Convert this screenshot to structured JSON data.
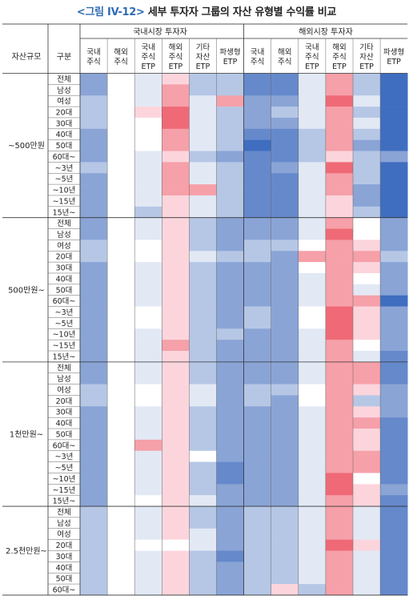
{
  "title": {
    "tag": "<그림 IV-12>",
    "text": "세부 투자자 그룹의 자산 유형별 수익률 비교"
  },
  "headers": {
    "asset_size": "자산규모",
    "group": "구분",
    "domestic_investor": "국내시장 투자자",
    "overseas_investor": "해외시장 투자자"
  },
  "chart_data": {
    "type": "heatmap",
    "value_scale": "color: blue = lower return, red = higher return (values estimated 0-10 from cell color)",
    "columns": [
      {
        "section": "국내시장 투자자",
        "lines": [
          "국내",
          "주식"
        ]
      },
      {
        "section": "국내시장 투자자",
        "lines": [
          "해외",
          "주식"
        ]
      },
      {
        "section": "국내시장 투자자",
        "lines": [
          "국내",
          "주식",
          "ETP"
        ]
      },
      {
        "section": "국내시장 투자자",
        "lines": [
          "해외",
          "주식",
          "ETP"
        ]
      },
      {
        "section": "국내시장 투자자",
        "lines": [
          "기타",
          "자산",
          "ETP"
        ]
      },
      {
        "section": "국내시장 투자자",
        "lines": [
          "파생형",
          "ETP"
        ]
      },
      {
        "section": "해외시장 투자자",
        "lines": [
          "국내",
          "주식"
        ]
      },
      {
        "section": "해외시장 투자자",
        "lines": [
          "해외",
          "주식"
        ]
      },
      {
        "section": "해외시장 투자자",
        "lines": [
          "국내",
          "주식",
          "ETP"
        ]
      },
      {
        "section": "해외시장 투자자",
        "lines": [
          "해외",
          "주식",
          "ETP"
        ]
      },
      {
        "section": "해외시장 투자자",
        "lines": [
          "기타",
          "자산",
          "ETP"
        ]
      },
      {
        "section": "해외시장 투자자",
        "lines": [
          "파생형",
          "ETP"
        ]
      }
    ],
    "groups": [
      {
        "label": "~500만원",
        "rows": [
          {
            "label": "전체",
            "values": [
              2,
              5,
              4,
              6,
              3,
              3,
              1,
              1,
              4,
              7,
              3,
              0
            ]
          },
          {
            "label": "남성",
            "values": [
              2,
              5,
              4,
              7,
              3,
              3,
              1,
              1,
              4,
              7,
              3,
              0
            ]
          },
          {
            "label": "여성",
            "values": [
              3,
              5,
              4,
              7,
              4,
              7,
              2,
              2,
              4,
              8,
              4,
              0
            ]
          },
          {
            "label": "20대",
            "values": [
              3,
              5,
              6,
              8,
              4,
              3,
              2,
              3,
              4,
              7,
              3,
              0
            ]
          },
          {
            "label": "30대",
            "values": [
              3,
              5,
              5,
              8,
              4,
              3,
              2,
              2,
              4,
              7,
              4,
              0
            ]
          },
          {
            "label": "40대",
            "values": [
              2,
              5,
              5,
              7,
              4,
              3,
              1,
              1,
              3,
              7,
              3,
              0
            ]
          },
          {
            "label": "50대",
            "values": [
              2,
              5,
              5,
              7,
              4,
              3,
              0,
              1,
              3,
              7,
              2,
              0
            ]
          },
          {
            "label": "60대~",
            "values": [
              2,
              5,
              4,
              6,
              3,
              2,
              1,
              1,
              3,
              6,
              3,
              2
            ]
          },
          {
            "label": "~3년",
            "values": [
              3,
              5,
              4,
              7,
              4,
              3,
              1,
              2,
              4,
              8,
              3,
              0
            ]
          },
          {
            "label": "~5년",
            "values": [
              2,
              5,
              4,
              7,
              4,
              3,
              1,
              1,
              4,
              7,
              3,
              0
            ]
          },
          {
            "label": "~10년",
            "values": [
              2,
              5,
              4,
              7,
              7,
              3,
              1,
              1,
              4,
              7,
              2,
              0
            ]
          },
          {
            "label": "~15년",
            "values": [
              2,
              5,
              4,
              6,
              4,
              3,
              1,
              1,
              4,
              6,
              2,
              0
            ]
          },
          {
            "label": "15년~",
            "values": [
              2,
              5,
              3,
              6,
              4,
              3,
              1,
              1,
              4,
              6,
              3,
              0
            ]
          }
        ]
      },
      {
        "label": "500만원~",
        "rows": [
          {
            "label": "전체",
            "values": [
              2,
              5,
              4,
              6,
              3,
              2,
              2,
              2,
              4,
              7,
              5,
              2
            ]
          },
          {
            "label": "남성",
            "values": [
              2,
              5,
              4,
              6,
              3,
              2,
              2,
              2,
              4,
              8,
              5,
              2
            ]
          },
          {
            "label": "여성",
            "values": [
              3,
              5,
              5,
              6,
              3,
              2,
              3,
              3,
              5,
              7,
              6,
              2
            ]
          },
          {
            "label": "20대",
            "values": [
              3,
              5,
              5,
              6,
              4,
              3,
              3,
              2,
              7,
              7,
              7,
              3
            ]
          },
          {
            "label": "30대",
            "values": [
              2,
              5,
              4,
              6,
              3,
              2,
              2,
              2,
              5,
              7,
              6,
              2
            ]
          },
          {
            "label": "40대",
            "values": [
              2,
              5,
              4,
              6,
              3,
              2,
              2,
              2,
              4,
              7,
              5,
              2
            ]
          },
          {
            "label": "50대",
            "values": [
              2,
              5,
              4,
              6,
              3,
              2,
              2,
              2,
              4,
              7,
              4,
              2
            ]
          },
          {
            "label": "60대~",
            "values": [
              2,
              5,
              4,
              6,
              3,
              2,
              2,
              2,
              4,
              7,
              7,
              0
            ]
          },
          {
            "label": "~3년",
            "values": [
              2,
              5,
              5,
              6,
              3,
              2,
              3,
              2,
              5,
              8,
              6,
              2
            ]
          },
          {
            "label": "~5년",
            "values": [
              2,
              5,
              5,
              6,
              3,
              2,
              3,
              2,
              5,
              8,
              6,
              2
            ]
          },
          {
            "label": "~10년",
            "values": [
              2,
              5,
              4,
              6,
              3,
              3,
              2,
              2,
              4,
              8,
              6,
              2
            ]
          },
          {
            "label": "~15년",
            "values": [
              2,
              5,
              4,
              7,
              3,
              2,
              2,
              2,
              4,
              7,
              5,
              2
            ]
          },
          {
            "label": "15년~",
            "values": [
              2,
              5,
              4,
              6,
              3,
              2,
              2,
              2,
              4,
              7,
              4,
              1
            ]
          }
        ]
      },
      {
        "label": "1천만원~",
        "rows": [
          {
            "label": "전체",
            "values": [
              2,
              5,
              4,
              6,
              3,
              2,
              2,
              2,
              4,
              7,
              7,
              1
            ]
          },
          {
            "label": "남성",
            "values": [
              2,
              5,
              4,
              6,
              3,
              2,
              2,
              2,
              4,
              7,
              7,
              1
            ]
          },
          {
            "label": "여성",
            "values": [
              3,
              5,
              5,
              6,
              4,
              2,
              3,
              3,
              5,
              7,
              6,
              2
            ]
          },
          {
            "label": "20대",
            "values": [
              3,
              5,
              5,
              6,
              4,
              2,
              3,
              2,
              5,
              7,
              3,
              2
            ]
          },
          {
            "label": "30대",
            "values": [
              2,
              5,
              4,
              6,
              3,
              2,
              2,
              2,
              4,
              7,
              6,
              2
            ]
          },
          {
            "label": "40대",
            "values": [
              2,
              5,
              4,
              6,
              3,
              2,
              2,
              2,
              4,
              7,
              7,
              1
            ]
          },
          {
            "label": "50대",
            "values": [
              2,
              5,
              4,
              6,
              3,
              2,
              2,
              2,
              4,
              7,
              6,
              1
            ]
          },
          {
            "label": "60대~",
            "values": [
              2,
              5,
              7,
              6,
              3,
              2,
              2,
              2,
              4,
              7,
              6,
              1
            ]
          },
          {
            "label": "~3년",
            "values": [
              2,
              5,
              4,
              6,
              5,
              2,
              2,
              2,
              4,
              7,
              7,
              1
            ]
          },
          {
            "label": "~5년",
            "values": [
              2,
              5,
              4,
              6,
              3,
              1,
              2,
              2,
              4,
              7,
              7,
              1
            ]
          },
          {
            "label": "~10년",
            "values": [
              2,
              5,
              4,
              6,
              3,
              1,
              2,
              2,
              4,
              8,
              5,
              1
            ]
          },
          {
            "label": "~15년",
            "values": [
              2,
              5,
              4,
              6,
              3,
              2,
              2,
              2,
              4,
              8,
              6,
              2
            ]
          },
          {
            "label": "15년~",
            "values": [
              2,
              5,
              5,
              6,
              4,
              2,
              2,
              2,
              4,
              7,
              6,
              1
            ]
          }
        ]
      },
      {
        "label": "2.5천만원~",
        "rows": [
          {
            "label": "전체",
            "values": [
              3,
              5,
              4,
              6,
              3,
              2,
              3,
              3,
              4,
              7,
              4,
              1
            ]
          },
          {
            "label": "남성",
            "values": [
              3,
              5,
              4,
              6,
              3,
              2,
              3,
              3,
              4,
              7,
              4,
              1
            ]
          },
          {
            "label": "여성",
            "values": [
              3,
              5,
              4,
              6,
              4,
              2,
              3,
              3,
              4,
              7,
              4,
              1
            ]
          },
          {
            "label": "20대",
            "values": [
              3,
              5,
              5,
              5,
              4,
              2,
              3,
              3,
              4,
              8,
              6,
              1
            ]
          },
          {
            "label": "30대",
            "values": [
              3,
              5,
              4,
              6,
              3,
              1,
              3,
              3,
              4,
              7,
              4,
              1
            ]
          },
          {
            "label": "40대",
            "values": [
              3,
              5,
              4,
              6,
              3,
              2,
              3,
              3,
              4,
              7,
              4,
              1
            ]
          },
          {
            "label": "50대",
            "values": [
              3,
              5,
              4,
              6,
              3,
              2,
              3,
              3,
              4,
              7,
              4,
              1
            ]
          },
          {
            "label": "60대~",
            "values": [
              3,
              5,
              4,
              6,
              3,
              2,
              3,
              6,
              3,
              7,
              4,
              1
            ]
          }
        ]
      }
    ]
  }
}
